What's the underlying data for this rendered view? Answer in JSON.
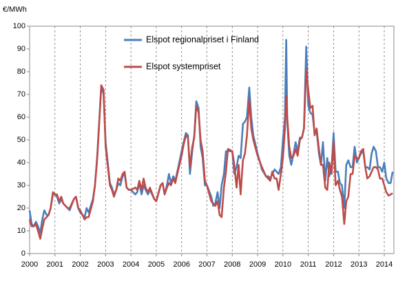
{
  "chart_data": {
    "type": "line",
    "y_label": "€/MWh",
    "x": [
      2000.0,
      2000.08,
      2000.17,
      2000.25,
      2000.33,
      2000.42,
      2000.5,
      2000.58,
      2000.67,
      2000.75,
      2000.83,
      2000.92,
      2001.0,
      2001.08,
      2001.17,
      2001.25,
      2001.33,
      2001.5,
      2001.58,
      2001.75,
      2001.83,
      2001.92,
      2002.0,
      2002.17,
      2002.25,
      2002.33,
      2002.5,
      2002.58,
      2002.67,
      2002.83,
      2002.92,
      2003.0,
      2003.17,
      2003.25,
      2003.33,
      2003.42,
      2003.5,
      2003.58,
      2003.67,
      2003.75,
      2003.83,
      2003.92,
      2004.0,
      2004.17,
      2004.25,
      2004.33,
      2004.42,
      2004.5,
      2004.58,
      2004.67,
      2004.75,
      2004.92,
      2005.0,
      2005.17,
      2005.25,
      2005.33,
      2005.42,
      2005.5,
      2005.58,
      2005.67,
      2005.75,
      2005.83,
      2006.0,
      2006.08,
      2006.17,
      2006.25,
      2006.33,
      2006.42,
      2006.5,
      2006.58,
      2006.67,
      2006.75,
      2006.83,
      2006.92,
      2007.0,
      2007.17,
      2007.25,
      2007.33,
      2007.42,
      2007.5,
      2007.58,
      2007.67,
      2007.75,
      2007.83,
      2008.0,
      2008.08,
      2008.17,
      2008.25,
      2008.33,
      2008.42,
      2008.5,
      2008.58,
      2008.67,
      2008.75,
      2008.83,
      2009.0,
      2009.17,
      2009.33,
      2009.42,
      2009.5,
      2009.58,
      2009.67,
      2009.75,
      2009.83,
      2009.92,
      2010.0,
      2010.08,
      2010.13,
      2010.17,
      2010.25,
      2010.33,
      2010.42,
      2010.5,
      2010.58,
      2010.67,
      2010.75,
      2010.83,
      2010.92,
      2011.0,
      2011.08,
      2011.17,
      2011.25,
      2011.33,
      2011.42,
      2011.5,
      2011.58,
      2011.67,
      2011.75,
      2011.83,
      2011.92,
      2012.0,
      2012.08,
      2012.17,
      2012.25,
      2012.33,
      2012.42,
      2012.5,
      2012.58,
      2012.67,
      2012.75,
      2012.83,
      2012.92,
      2013.0,
      2013.08,
      2013.17,
      2013.25,
      2013.33,
      2013.42,
      2013.5,
      2013.58,
      2013.67,
      2013.75,
      2013.83,
      2013.92,
      2014.0,
      2014.08,
      2014.17,
      2014.25,
      2014.33
    ],
    "series": [
      {
        "name": "Elspot regionalpriset i Finland",
        "color": "#4a7ebb",
        "values": [
          19,
          13,
          12,
          14,
          12,
          9,
          15,
          19,
          17,
          17,
          20,
          26,
          26,
          25,
          22,
          24,
          22,
          20,
          19,
          24,
          25,
          20,
          18,
          16,
          20,
          18,
          24,
          30,
          43,
          74,
          70,
          49,
          31,
          29,
          26,
          28,
          31,
          30,
          34,
          35,
          29,
          28,
          28,
          26,
          27,
          31,
          26,
          30,
          28,
          26,
          28,
          24,
          23,
          30,
          31,
          26,
          30,
          35,
          31,
          34,
          32,
          36,
          45,
          49,
          53,
          52,
          35,
          45,
          52,
          67,
          64,
          47,
          42,
          30,
          30,
          25,
          21,
          22,
          27,
          20,
          30,
          35,
          45,
          45,
          45,
          35,
          38,
          43,
          42,
          57,
          58,
          60,
          73,
          60,
          52,
          44,
          37,
          34,
          34,
          33,
          35,
          37,
          36,
          35,
          38,
          50,
          60,
          94,
          58,
          43,
          39,
          44,
          49,
          45,
          51,
          51,
          55,
          91,
          65,
          62,
          61,
          53,
          54,
          44,
          39,
          49,
          32,
          42,
          34,
          38,
          53,
          36,
          36,
          31,
          30,
          20,
          39,
          41,
          38,
          38,
          47,
          40,
          42,
          44,
          45,
          38,
          38,
          37,
          44,
          47,
          45,
          38,
          38,
          36,
          40,
          33,
          31,
          31,
          36
        ]
      },
      {
        "name": "Elspot systempriset",
        "color": "#be4b48",
        "values": [
          15,
          12,
          12,
          13,
          10,
          6.5,
          11,
          15,
          16,
          17,
          20,
          27,
          26,
          26,
          23,
          25,
          22,
          20,
          20,
          24,
          25,
          20,
          19,
          15,
          16,
          16,
          23,
          30,
          42,
          74,
          72,
          47,
          30,
          28,
          25,
          28,
          33,
          32,
          35,
          36,
          29,
          28,
          28,
          29,
          28,
          32,
          28,
          33,
          29,
          27,
          29,
          24,
          23,
          30,
          31,
          26,
          29,
          31,
          30,
          33,
          31,
          35,
          43,
          48,
          52,
          51,
          38,
          47,
          51,
          65,
          62,
          50,
          45,
          32,
          30,
          23,
          22,
          21,
          23,
          17,
          16,
          29,
          36,
          46,
          45,
          39,
          29,
          39,
          26,
          41,
          44,
          52,
          68,
          55,
          50,
          43,
          38,
          34,
          33,
          32,
          36,
          33,
          33,
          28,
          35,
          42,
          55,
          69,
          60,
          47,
          42,
          43,
          46,
          43,
          50,
          51,
          55,
          81,
          72,
          64,
          65,
          52,
          55,
          46,
          39,
          39,
          29,
          28,
          40,
          35,
          49,
          30,
          32,
          28,
          25,
          13,
          23,
          25,
          35,
          35,
          43,
          42,
          42,
          45,
          46,
          38,
          33,
          34,
          36,
          38,
          38,
          37,
          33,
          33,
          30,
          27,
          25.5,
          26,
          26.5
        ]
      }
    ],
    "xlim": [
      2000,
      2014.38
    ],
    "xticks": [
      2000,
      2001,
      2002,
      2003,
      2004,
      2005,
      2006,
      2007,
      2008,
      2009,
      2010,
      2011,
      2012,
      2013,
      2014
    ],
    "ylim": [
      0,
      100
    ],
    "yticks": [
      0,
      10,
      20,
      30,
      40,
      50,
      60,
      70,
      80,
      90,
      100
    ],
    "x_grid": true,
    "legend": "top"
  }
}
